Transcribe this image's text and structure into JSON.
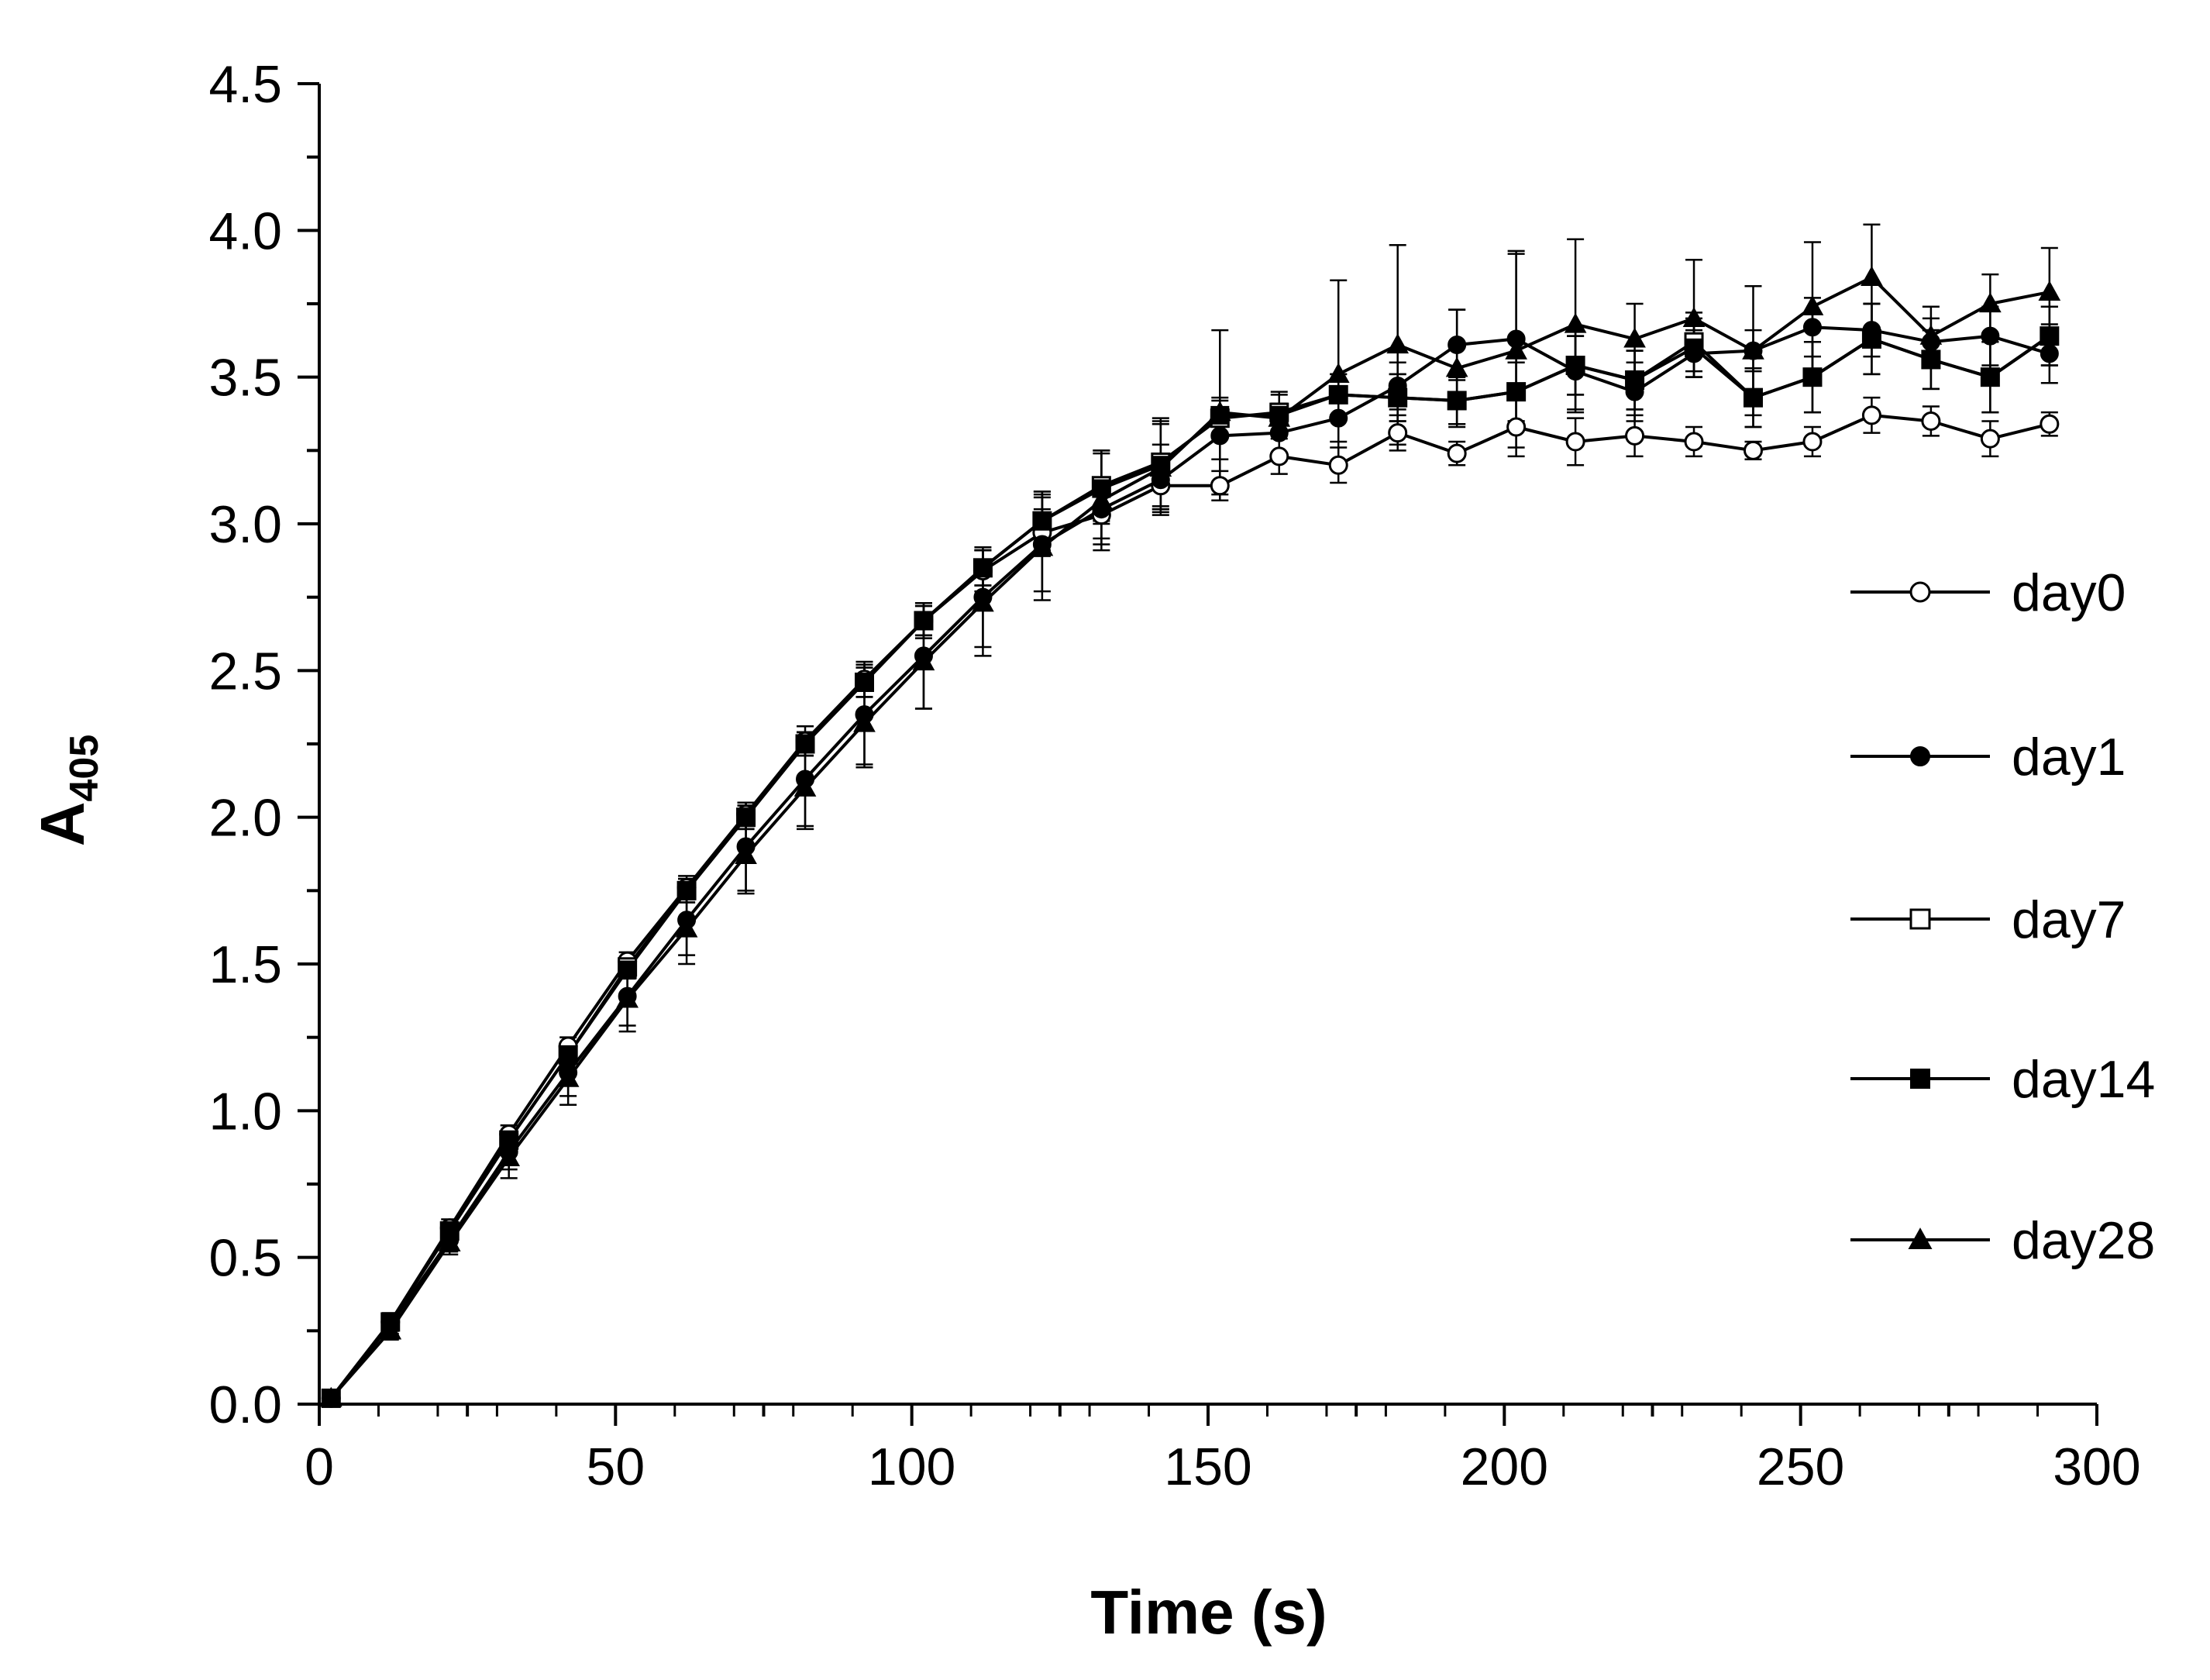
{
  "chart_data": {
    "type": "line",
    "title": "",
    "xlabel": "Time (s)",
    "ylabel": "A",
    "ylabel_subscript": "405",
    "xlim": [
      0,
      300
    ],
    "ylim": [
      0,
      4.5
    ],
    "xticks": [
      0,
      50,
      100,
      150,
      200,
      250,
      300
    ],
    "xtick_labels": [
      "0",
      "50",
      "100",
      "150",
      "200",
      "250",
      "300"
    ],
    "yticks": [
      0,
      0.5,
      1,
      1.5,
      2,
      2.5,
      3,
      3.5,
      4,
      4.5
    ],
    "ytick_labels": [
      "0.0",
      "0.5",
      "1.0",
      "1.5",
      "2.0",
      "2.5",
      "3.0",
      "3.5",
      "4.0",
      "4.5"
    ],
    "grid": false,
    "legend_position": "right",
    "x": [
      2,
      12,
      22,
      32,
      42,
      52,
      62,
      72,
      82,
      92,
      102,
      112,
      122,
      132,
      142,
      152,
      162,
      172,
      182,
      192,
      202,
      212,
      222,
      232,
      242,
      252,
      262,
      272,
      282,
      292
    ],
    "series": [
      {
        "name": "day0",
        "marker": "circle-open",
        "values": [
          0.02,
          0.28,
          0.6,
          0.92,
          1.22,
          1.51,
          1.76,
          2.01,
          2.26,
          2.47,
          2.67,
          2.84,
          2.97,
          3.03,
          3.13,
          3.13,
          3.23,
          3.2,
          3.31,
          3.24,
          3.33,
          3.28,
          3.3,
          3.28,
          3.25,
          3.28,
          3.37,
          3.35,
          3.29,
          3.34
        ],
        "errors": [
          0.02,
          0.03,
          0.03,
          0.03,
          0.03,
          0.03,
          0.04,
          0.04,
          0.05,
          0.06,
          0.06,
          0.07,
          0.08,
          0.1,
          0.08,
          0.05,
          0.06,
          0.06,
          0.06,
          0.04,
          0.1,
          0.08,
          0.07,
          0.05,
          0.03,
          0.05,
          0.06,
          0.05,
          0.06,
          0.04
        ]
      },
      {
        "name": "day1",
        "marker": "circle-filled",
        "values": [
          0.02,
          0.27,
          0.56,
          0.86,
          1.13,
          1.39,
          1.65,
          1.9,
          2.13,
          2.35,
          2.55,
          2.75,
          2.93,
          3.05,
          3.15,
          3.3,
          3.31,
          3.36,
          3.47,
          3.61,
          3.63,
          3.52,
          3.45,
          3.58,
          3.59,
          3.67,
          3.66,
          3.62,
          3.64,
          3.58
        ],
        "errors": [
          0.02,
          0.03,
          0.04,
          0.06,
          0.08,
          0.1,
          0.12,
          0.15,
          0.16,
          0.17,
          0.18,
          0.17,
          0.16,
          0.1,
          0.12,
          0.08,
          0.07,
          0.08,
          0.08,
          0.12,
          0.3,
          0.14,
          0.1,
          0.08,
          0.07,
          0.1,
          0.09,
          0.08,
          0.1,
          0.1
        ]
      },
      {
        "name": "day7",
        "marker": "square-open",
        "values": [
          0.02,
          0.28,
          0.59,
          0.9,
          1.19,
          1.49,
          1.75,
          2.0,
          2.25,
          2.46,
          2.67,
          2.85,
          3.01,
          3.13,
          3.21,
          3.36,
          3.38,
          3.44,
          3.43,
          3.42,
          3.45,
          3.54,
          3.49,
          3.62,
          3.43,
          3.5,
          3.63,
          3.56,
          3.5,
          3.64
        ],
        "errors": [
          0.02,
          0.03,
          0.03,
          0.03,
          0.03,
          0.03,
          0.04,
          0.04,
          0.04,
          0.05,
          0.05,
          0.06,
          0.1,
          0.12,
          0.15,
          0.06,
          0.07,
          0.07,
          0.08,
          0.08,
          0.1,
          0.1,
          0.1,
          0.1,
          0.1,
          0.12,
          0.12,
          0.1,
          0.12,
          0.1
        ]
      },
      {
        "name": "day14",
        "marker": "square-filled",
        "values": [
          0.02,
          0.28,
          0.59,
          0.9,
          1.19,
          1.48,
          1.75,
          2.0,
          2.25,
          2.46,
          2.67,
          2.85,
          3.01,
          3.12,
          3.2,
          3.37,
          3.37,
          3.44,
          3.43,
          3.42,
          3.45,
          3.54,
          3.49,
          3.6,
          3.43,
          3.5,
          3.63,
          3.56,
          3.5,
          3.64
        ],
        "errors": [
          0.02,
          0.03,
          0.03,
          0.03,
          0.03,
          0.03,
          0.04,
          0.04,
          0.04,
          0.05,
          0.05,
          0.06,
          0.1,
          0.12,
          0.15,
          0.06,
          0.07,
          0.07,
          0.08,
          0.08,
          0.1,
          0.1,
          0.1,
          0.1,
          0.1,
          0.12,
          0.12,
          0.1,
          0.12,
          0.1
        ]
      },
      {
        "name": "day28",
        "marker": "triangle-filled",
        "values": [
          0.02,
          0.25,
          0.55,
          0.84,
          1.11,
          1.38,
          1.62,
          1.87,
          2.1,
          2.32,
          2.53,
          2.73,
          2.92,
          3.08,
          3.19,
          3.38,
          3.36,
          3.51,
          3.61,
          3.53,
          3.59,
          3.68,
          3.63,
          3.7,
          3.59,
          3.74,
          3.84,
          3.64,
          3.75,
          3.79
        ],
        "errors": [
          0.02,
          0.03,
          0.04,
          0.07,
          0.09,
          0.11,
          0.12,
          0.13,
          0.14,
          0.15,
          0.16,
          0.18,
          0.18,
          0.17,
          0.15,
          0.28,
          0.05,
          0.32,
          0.34,
          0.2,
          0.33,
          0.29,
          0.12,
          0.2,
          0.22,
          0.22,
          0.18,
          0.1,
          0.1,
          0.15
        ]
      }
    ]
  }
}
